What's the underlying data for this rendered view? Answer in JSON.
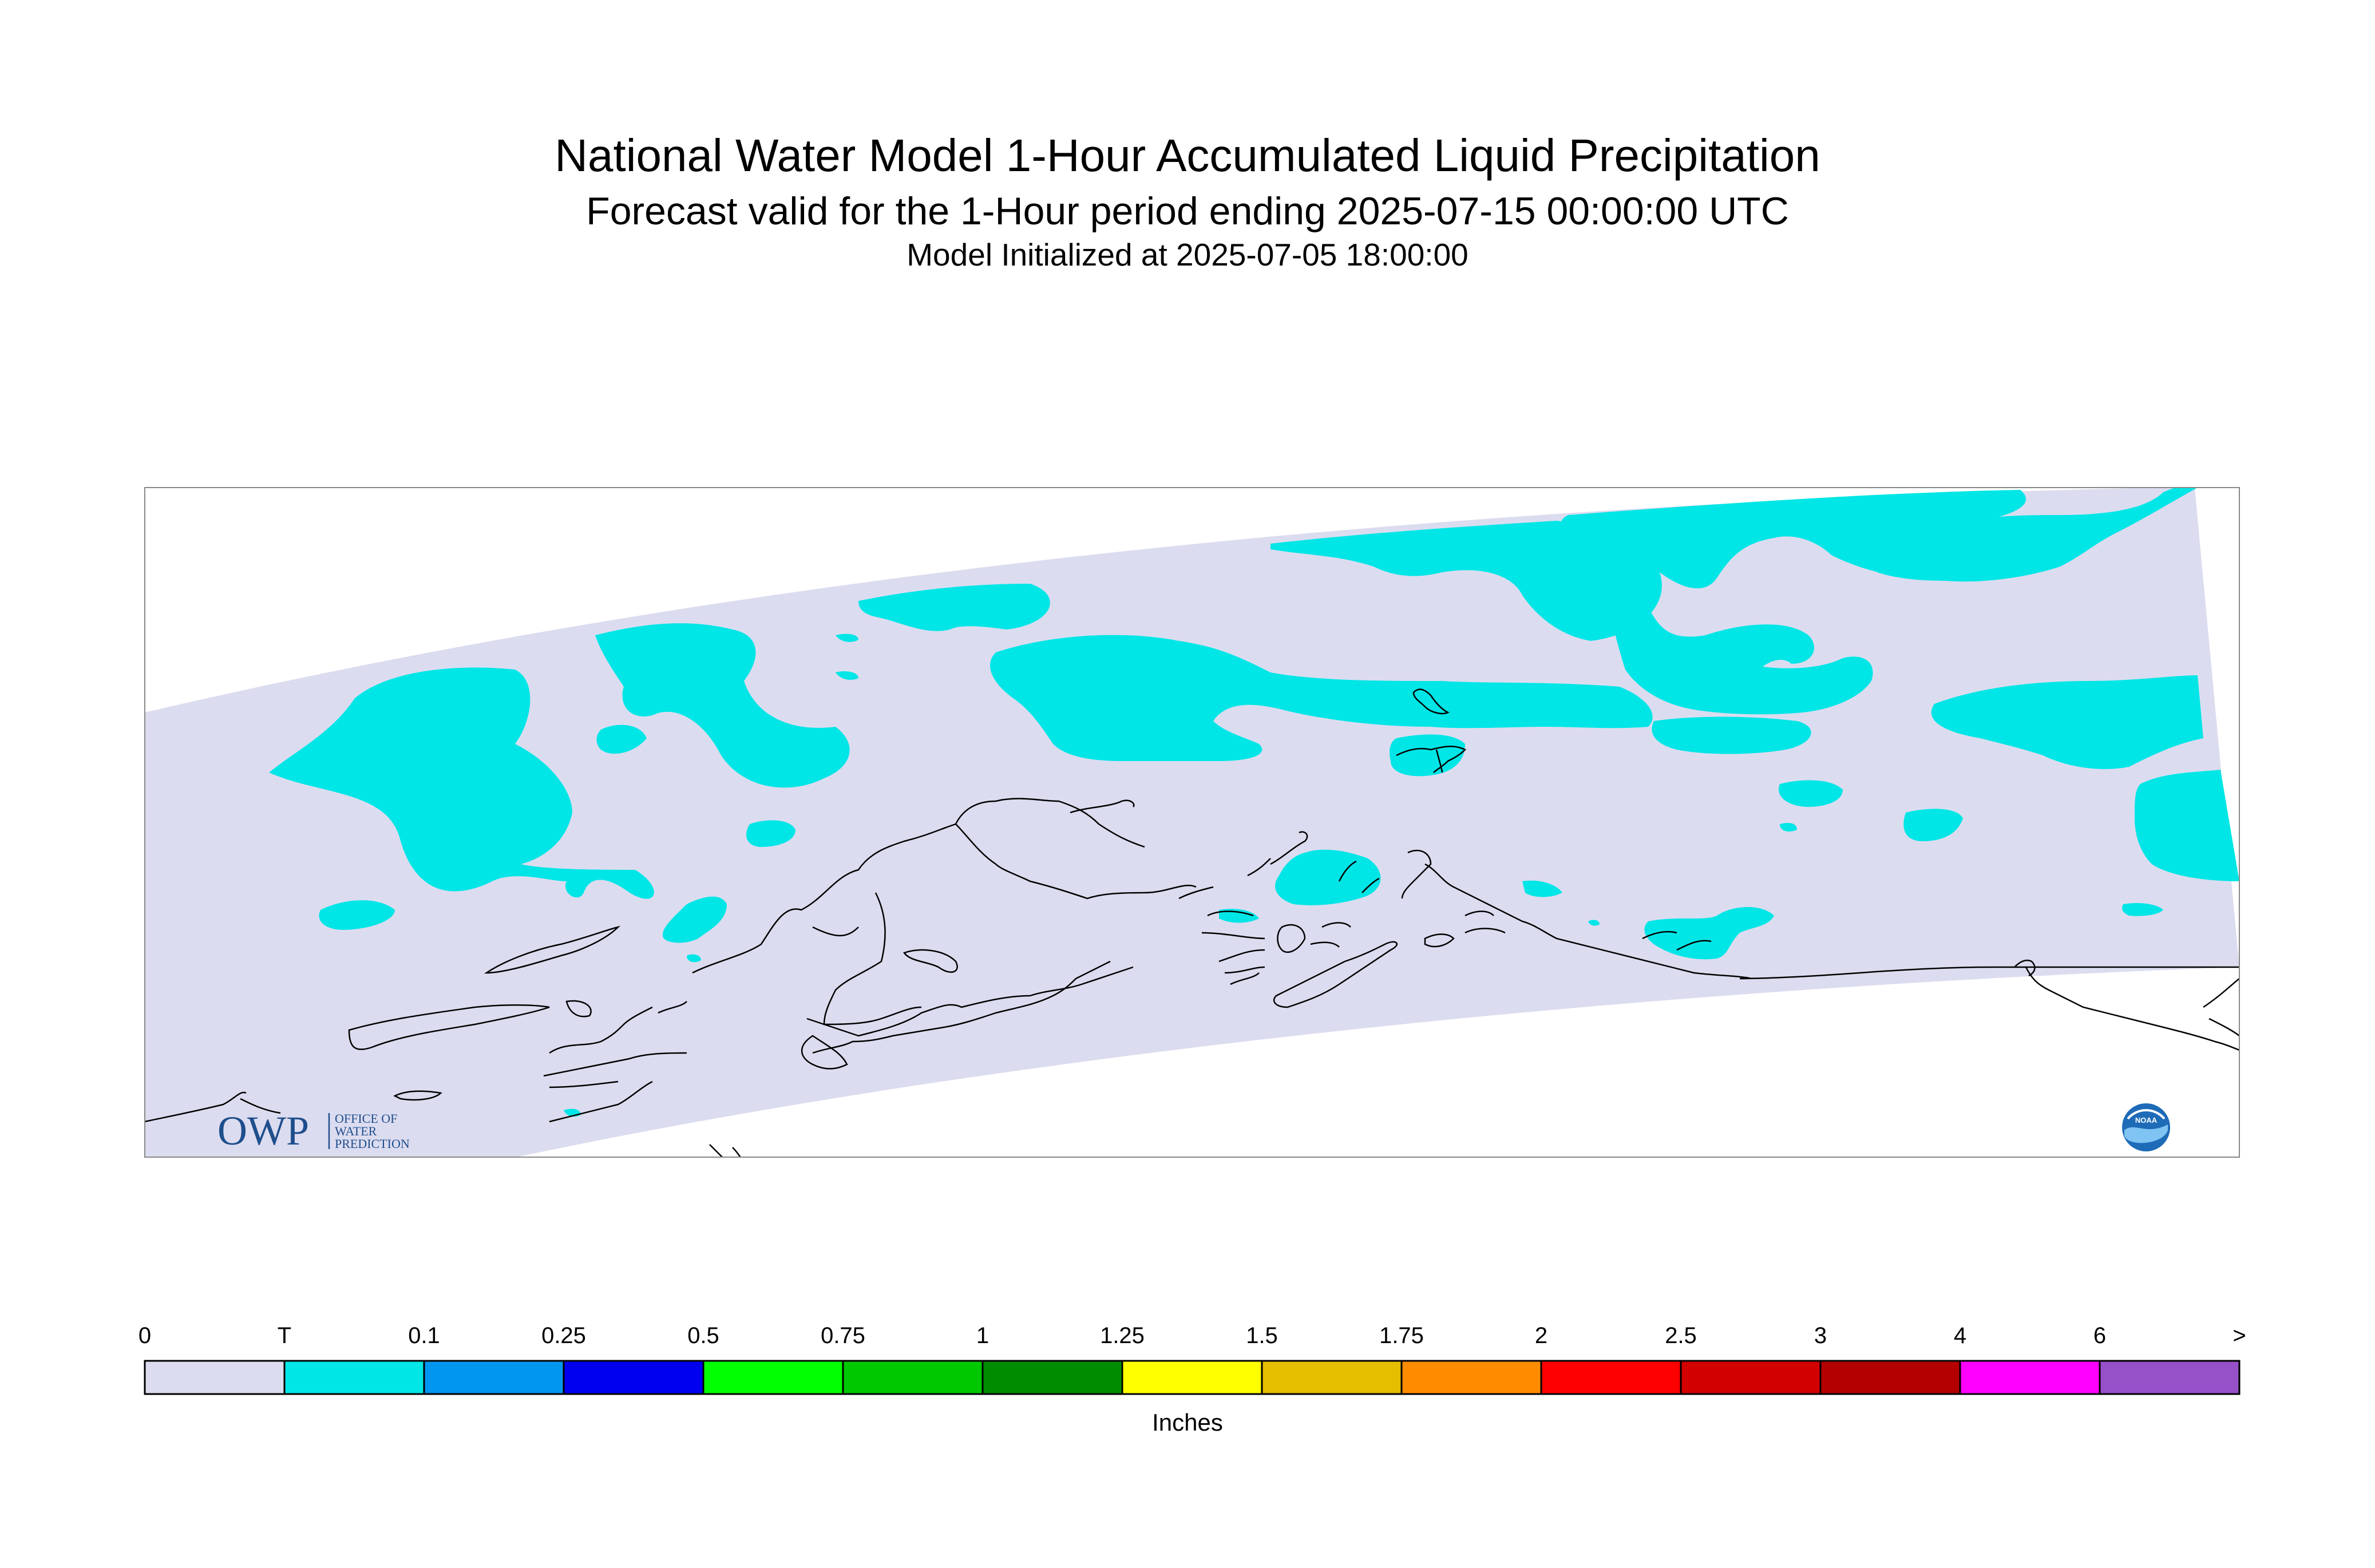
{
  "header": {
    "title": "National Water Model 1-Hour Accumulated Liquid Precipitation",
    "subtitle": "Forecast valid for the 1-Hour period ending 2025-07-15 00:00:00 UTC",
    "init": "Model Initialized at 2025-07-05 18:00:00"
  },
  "map": {
    "domain_color": "#dcdcf0",
    "precip_color": "#00e6e6",
    "coast_color": "#000000"
  },
  "logos": {
    "owp": {
      "mark": "OWP",
      "lines": [
        "OFFICE OF",
        "WATER",
        "PREDICTION"
      ],
      "color": "#1f4e8c"
    },
    "noaa": {
      "text": "NOAA",
      "color": "#1e6bb8"
    }
  },
  "colorbar": {
    "units": "Inches",
    "labels": [
      "0",
      "T",
      "0.1",
      "0.25",
      "0.5",
      "0.75",
      "1",
      "1.25",
      "1.5",
      "1.75",
      "2",
      "2.5",
      "3",
      "4",
      "6",
      ">"
    ],
    "colors": [
      "#dcdcf0",
      "#00e6e6",
      "#0096ef",
      "#0000f0",
      "#00ff00",
      "#00c800",
      "#008c00",
      "#ffff00",
      "#e6be00",
      "#ff8c00",
      "#ff0000",
      "#d20000",
      "#b40000",
      "#ff00ff",
      "#9650c8"
    ]
  }
}
